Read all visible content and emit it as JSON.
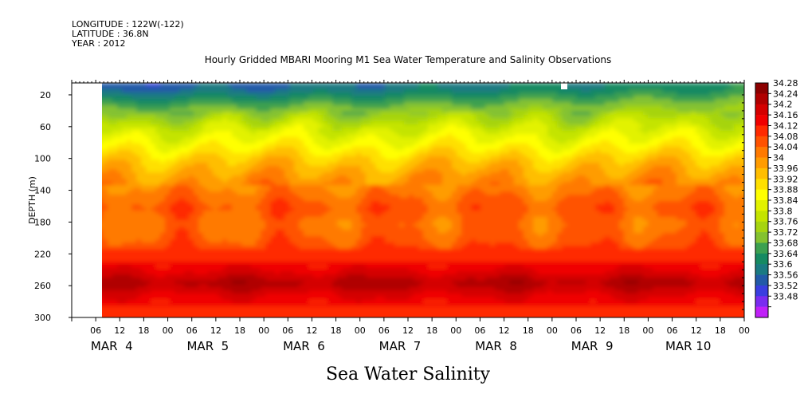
{
  "header": {
    "longitude": "LONGITUDE : 122W(-122)",
    "latitude": "LATITUDE : 36.8N",
    "year": "YEAR : 2012"
  },
  "chart_data": {
    "type": "heatmap",
    "title": "Hourly Gridded MBARI Mooring M1 Sea Water Temperature and Salinity Observations",
    "ylabel": "DEPTH (m)",
    "variable_label": "Sea Water Salinity",
    "y_ticks": [
      20,
      60,
      100,
      140,
      180,
      220,
      260,
      300
    ],
    "ylim": [
      300,
      5
    ],
    "x_hour_labels": [
      "06",
      "12",
      "18",
      "00",
      "06",
      "12",
      "18",
      "00",
      "06",
      "12",
      "18",
      "00",
      "06",
      "12",
      "18",
      "00",
      "06",
      "12",
      "18",
      "00",
      "06",
      "12",
      "18",
      "00",
      "06",
      "12",
      "18",
      "00"
    ],
    "x_day_labels": [
      "MAR  4",
      "MAR  5",
      "MAR  6",
      "MAR  7",
      "MAR  8",
      "MAR  9",
      "MAR 10"
    ],
    "xlim_hours": [
      0,
      168
    ],
    "data_start_hour": 3,
    "colorbar": {
      "levels": [
        "34.28",
        "34.24",
        "34.2",
        "34.16",
        "34.12",
        "34.08",
        "34.04",
        "34",
        "33.96",
        "33.92",
        "33.88",
        "33.84",
        "33.8",
        "33.76",
        "33.72",
        "33.68",
        "33.64",
        "33.6",
        "33.56",
        "33.52",
        "33.48"
      ],
      "colors": [
        "#8c0000",
        "#b00000",
        "#d40000",
        "#f00000",
        "#ff2a00",
        "#ff5200",
        "#ff7a00",
        "#ff9c00",
        "#ffbe00",
        "#ffe000",
        "#ffff00",
        "#e2f200",
        "#c4e400",
        "#a6d410",
        "#84c230",
        "#3ca050",
        "#168a62",
        "#1a7a82",
        "#225aa8",
        "#3a3ee0",
        "#7a2cf0",
        "#c020f8"
      ]
    },
    "depth_profile": [
      {
        "depth": 10,
        "value": 33.62
      },
      {
        "depth": 20,
        "value": 33.67
      },
      {
        "depth": 30,
        "value": 33.72
      },
      {
        "depth": 45,
        "value": 33.78
      },
      {
        "depth": 60,
        "value": 33.84
      },
      {
        "depth": 80,
        "value": 33.9
      },
      {
        "depth": 100,
        "value": 33.97
      },
      {
        "depth": 120,
        "value": 34.02
      },
      {
        "depth": 140,
        "value": 34.06
      },
      {
        "depth": 160,
        "value": 34.1
      },
      {
        "depth": 180,
        "value": 34.07
      },
      {
        "depth": 200,
        "value": 34.09
      },
      {
        "depth": 220,
        "value": 34.14
      },
      {
        "depth": 240,
        "value": 34.2
      },
      {
        "depth": 255,
        "value": 34.26
      },
      {
        "depth": 270,
        "value": 34.2
      },
      {
        "depth": 285,
        "value": 34.16
      },
      {
        "depth": 300,
        "value": 34.12
      }
    ]
  }
}
